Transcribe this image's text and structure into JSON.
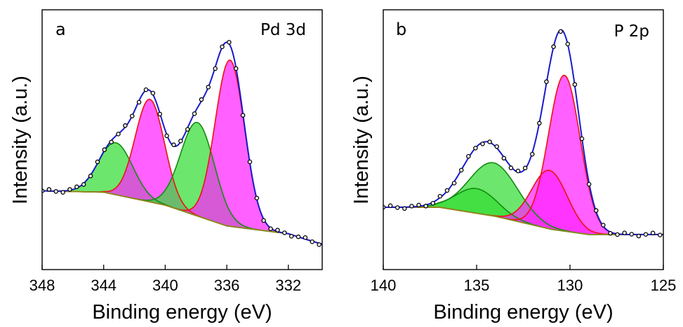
{
  "chart_data": [
    {
      "type": "line",
      "panel_label": "a",
      "title": "Pd 3d",
      "xlabel": "Binding energy (eV)",
      "ylabel": "Intensity (a.u.)",
      "xlim": [
        348,
        329.8
      ],
      "x_reversed": true,
      "x_ticks": [
        348,
        344,
        340,
        336,
        332
      ],
      "ylim": [
        0,
        1
      ],
      "background": {
        "x": [
          348,
          344,
          340,
          336,
          332,
          330.5,
          329.8
        ],
        "y": [
          0.303,
          0.298,
          0.248,
          0.168,
          0.138,
          0.11,
          0.098
        ]
      },
      "peaks": [
        {
          "color": "#33dd33",
          "center": 343.2,
          "height": 0.2,
          "width": 1.1
        },
        {
          "color": "#ff22ff",
          "center": 341.0,
          "height": 0.395,
          "width": 0.95
        },
        {
          "color": "#33dd33",
          "center": 337.9,
          "height": 0.36,
          "width": 1.1
        },
        {
          "color": "#ff22ff",
          "center": 335.8,
          "height": 0.64,
          "width": 0.95
        }
      ],
      "marker_step": 0.45
    },
    {
      "type": "line",
      "panel_label": "b",
      "title": "P 2p",
      "xlabel": "Binding energy (eV)",
      "ylabel": "Intensity (a.u.)",
      "xlim": [
        140,
        125
      ],
      "x_reversed": true,
      "x_ticks": [
        140,
        135,
        130,
        125
      ],
      "ylim": [
        0,
        1
      ],
      "background": {
        "x": [
          140,
          137,
          134,
          131,
          129,
          126,
          125
        ],
        "y": [
          0.24,
          0.24,
          0.205,
          0.155,
          0.135,
          0.135,
          0.135
        ]
      },
      "peaks": [
        {
          "color": "#33dd33",
          "center": 135.0,
          "height": 0.095,
          "width": 1.1
        },
        {
          "color": "#33dd33",
          "center": 134.1,
          "height": 0.205,
          "width": 1.3
        },
        {
          "color": "#ff22ff",
          "center": 131.1,
          "height": 0.225,
          "width": 0.95
        },
        {
          "color": "#ff22ff",
          "center": 130.3,
          "height": 0.6,
          "width": 0.85
        }
      ],
      "marker_step": 0.38
    }
  ],
  "colors": {
    "envelope": "#1a1acc",
    "background": "#8a8a1a",
    "markers": "#000000"
  }
}
